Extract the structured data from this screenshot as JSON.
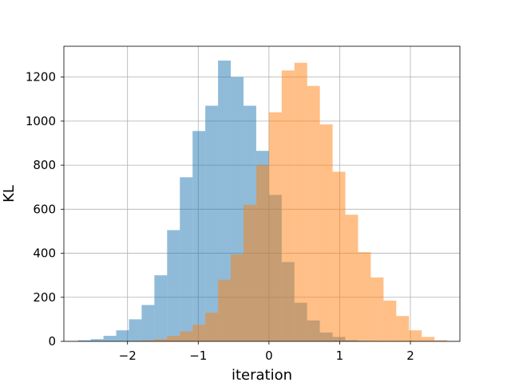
{
  "chart_data": {
    "type": "bar",
    "title": "",
    "xlabel": "iteration",
    "ylabel": "KL",
    "xlim": [
      -2.9,
      2.7
    ],
    "ylim": [
      0,
      1340
    ],
    "grid": true,
    "bin_width": 0.18,
    "x_ticks": [
      -2,
      -1,
      0,
      1,
      2
    ],
    "x_tick_labels": [
      "−2",
      "−1",
      "0",
      "1",
      "2"
    ],
    "y_ticks": [
      0,
      200,
      400,
      600,
      800,
      1000,
      1200
    ],
    "y_tick_labels": [
      "0",
      "200",
      "400",
      "600",
      "800",
      "1000",
      "1200"
    ],
    "series": [
      {
        "color": "#1f77b4",
        "opacity": 0.5,
        "bin_starts": [
          -2.7,
          -2.52,
          -2.34,
          -2.16,
          -1.98,
          -1.8,
          -1.62,
          -1.44,
          -1.26,
          -1.08,
          -0.9,
          -0.72,
          -0.54,
          -0.36,
          -0.18,
          0.0,
          0.18,
          0.36,
          0.54,
          0.72,
          0.9,
          1.08,
          1.26
        ],
        "values": [
          5,
          10,
          25,
          50,
          100,
          165,
          300,
          505,
          745,
          955,
          1070,
          1275,
          1200,
          1070,
          865,
          665,
          360,
          175,
          95,
          40,
          20,
          5,
          2
        ]
      },
      {
        "color": "#ff7f0e",
        "opacity": 0.5,
        "bin_starts": [
          -1.98,
          -1.8,
          -1.62,
          -1.44,
          -1.26,
          -1.08,
          -0.9,
          -0.72,
          -0.54,
          -0.36,
          -0.18,
          0.0,
          0.18,
          0.36,
          0.54,
          0.72,
          0.9,
          1.08,
          1.26,
          1.44,
          1.62,
          1.8,
          1.98,
          2.16,
          2.34
        ],
        "values": [
          2,
          5,
          10,
          25,
          45,
          75,
          130,
          280,
          395,
          620,
          800,
          1040,
          1230,
          1265,
          1160,
          985,
          770,
          575,
          405,
          290,
          185,
          115,
          50,
          20,
          5
        ]
      }
    ]
  }
}
